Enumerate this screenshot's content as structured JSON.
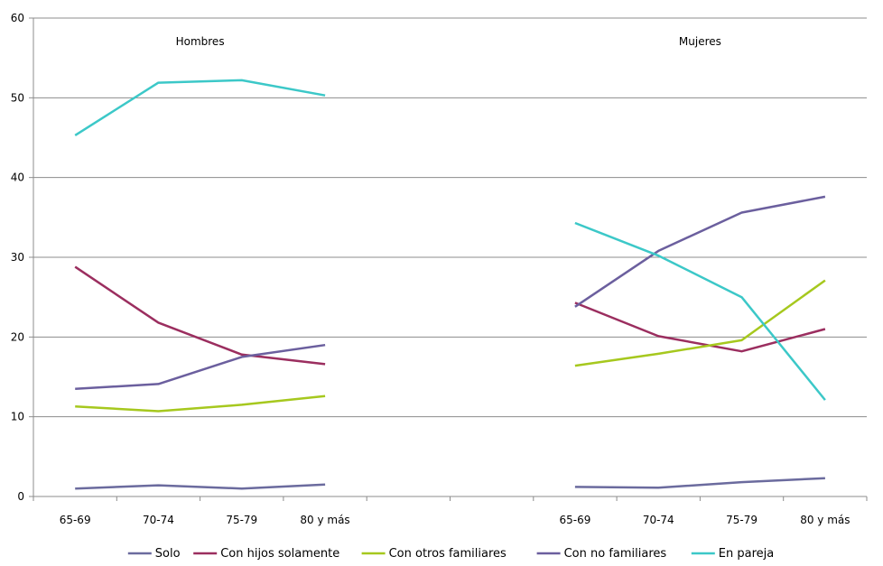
{
  "chart_data": {
    "type": "line",
    "title": "",
    "xlabel": "",
    "ylabel": "",
    "ylim": [
      0,
      60
    ],
    "yticks": [
      0,
      10,
      20,
      30,
      40,
      50,
      60
    ],
    "grid": "horizontal",
    "legend_position": "bottom",
    "panels": [
      {
        "label": "Hombres",
        "categories": [
          "65-69",
          "70-74",
          "75-79",
          "80 y más"
        ]
      },
      {
        "label": "Mujeres",
        "categories": [
          "65-69",
          "70-74",
          "75-79",
          "80 y más"
        ]
      }
    ],
    "series": [
      {
        "name": "Solo",
        "color": "#6B6B9E",
        "values": [
          [
            1.0,
            1.4,
            1.0,
            1.5
          ],
          [
            1.2,
            1.1,
            1.8,
            2.3
          ]
        ]
      },
      {
        "name": "Con hijos solamente",
        "color": "#9B2E5F",
        "values": [
          [
            28.8,
            21.8,
            17.8,
            16.6
          ],
          [
            24.3,
            20.1,
            18.2,
            21.0
          ]
        ]
      },
      {
        "name": "Con otros familiares",
        "color": "#A6C81E",
        "values": [
          [
            11.3,
            10.7,
            11.5,
            12.6
          ],
          [
            16.4,
            17.9,
            19.6,
            27.1
          ]
        ]
      },
      {
        "name": "Con no familiares",
        "color": "#6B5F9E",
        "values": [
          [
            13.5,
            14.1,
            17.5,
            19.0
          ],
          [
            23.8,
            30.8,
            35.6,
            37.6
          ]
        ]
      },
      {
        "name": "En pareja",
        "color": "#3CC8C8",
        "values": [
          [
            45.3,
            51.9,
            52.2,
            50.3
          ],
          [
            34.3,
            30.2,
            25.0,
            12.1
          ]
        ]
      }
    ]
  }
}
